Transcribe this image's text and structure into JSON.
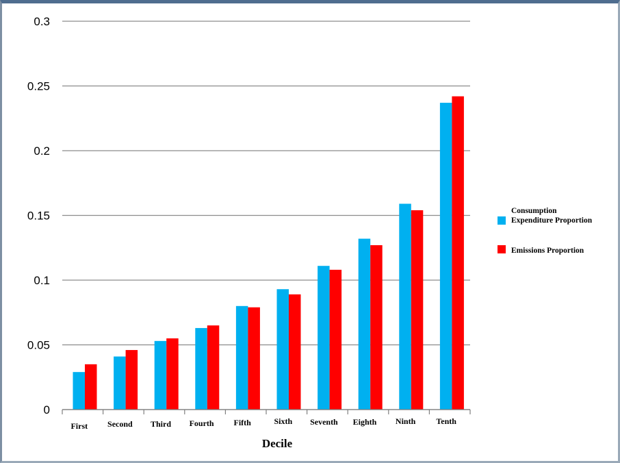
{
  "chart_data": {
    "type": "bar",
    "title": "",
    "xlabel": "Decile",
    "ylabel": "",
    "ylim": [
      0,
      0.3
    ],
    "yticks": [
      "0",
      "0.05",
      "0.1",
      "0.15",
      "0.2",
      "0.25",
      "0.3"
    ],
    "categories": [
      "First",
      "Second",
      "Third",
      "Fourth",
      "Fifth",
      "Sixth",
      "Seventh",
      "Eighth",
      "Ninth",
      "Tenth"
    ],
    "series": [
      {
        "name": "Consumption Expenditure Proportion",
        "color": "#00b0f0",
        "values": [
          0.029,
          0.041,
          0.053,
          0.063,
          0.08,
          0.093,
          0.111,
          0.132,
          0.159,
          0.237
        ]
      },
      {
        "name": "Emissions Proportion",
        "color": "#ff0000",
        "values": [
          0.035,
          0.046,
          0.055,
          0.065,
          0.079,
          0.089,
          0.108,
          0.127,
          0.154,
          0.242
        ]
      }
    ],
    "legend_lines": [
      [
        "Consumption",
        "Expenditure Proportion"
      ],
      [
        "Emissions Proportion"
      ]
    ],
    "grid": true,
    "legend_position": "right"
  }
}
